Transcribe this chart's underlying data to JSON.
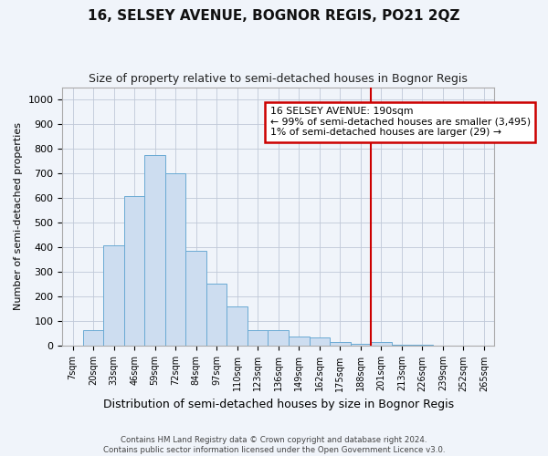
{
  "title": "16, SELSEY AVENUE, BOGNOR REGIS, PO21 2QZ",
  "subtitle": "Size of property relative to semi-detached houses in Bognor Regis",
  "xlabel": "Distribution of semi-detached houses by size in Bognor Regis",
  "ylabel": "Number of semi-detached properties",
  "footnote": "Contains HM Land Registry data © Crown copyright and database right 2024.\nContains public sector information licensed under the Open Government Licence v3.0.",
  "bin_labels": [
    "7sqm",
    "20sqm",
    "33sqm",
    "46sqm",
    "59sqm",
    "72sqm",
    "84sqm",
    "97sqm",
    "110sqm",
    "123sqm",
    "136sqm",
    "149sqm",
    "162sqm",
    "175sqm",
    "188sqm",
    "201sqm",
    "213sqm",
    "226sqm",
    "239sqm",
    "252sqm",
    "265sqm"
  ],
  "bar_values": [
    3,
    65,
    410,
    610,
    775,
    700,
    385,
    255,
    160,
    65,
    65,
    40,
    35,
    18,
    10,
    18,
    5,
    5,
    3,
    0,
    3
  ],
  "bar_color": "#cdddf0",
  "bar_edge_color": "#6aaad4",
  "property_line_label": "16 SELSEY AVENUE: 190sqm",
  "annotation_line1": "← 99% of semi-detached houses are smaller (3,495)",
  "annotation_line2": "1% of semi-detached houses are larger (29) →",
  "annotation_box_color": "#ffffff",
  "annotation_box_edge_color": "#cc0000",
  "line_color": "#cc0000",
  "ylim": [
    0,
    1050
  ],
  "yticks": [
    0,
    100,
    200,
    300,
    400,
    500,
    600,
    700,
    800,
    900,
    1000
  ],
  "bg_color": "#f0f4fa",
  "grid_color": "#c0c8d8"
}
